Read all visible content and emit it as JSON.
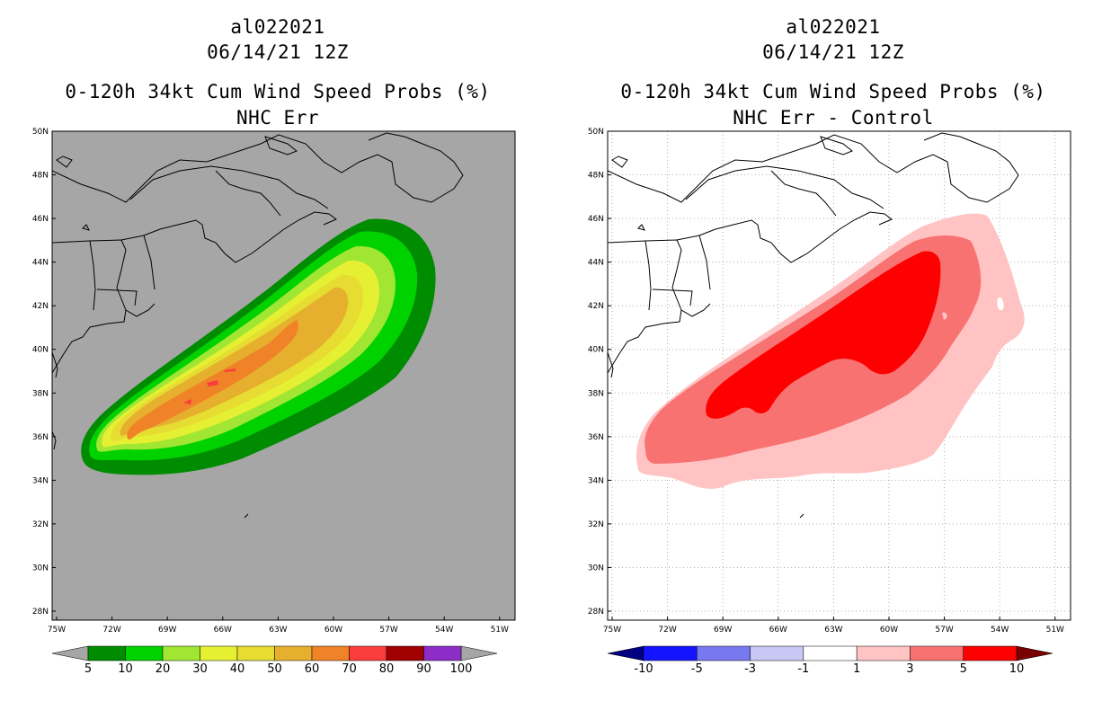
{
  "left": {
    "storm_id": "al022021",
    "datetime": "06/14/21 12Z",
    "product": "0-120h 34kt Cum Wind Speed Probs (%)",
    "subtitle": "NHC Err",
    "lat_labels": [
      "50N",
      "48N",
      "46N",
      "44N",
      "42N",
      "40N",
      "38N",
      "36N",
      "34N",
      "32N",
      "30N",
      "28N"
    ],
    "lon_labels": [
      "75W",
      "72W",
      "69W",
      "66W",
      "63W",
      "60W",
      "57W",
      "54W",
      "51W"
    ],
    "colorbar": {
      "labels": [
        "5",
        "10",
        "20",
        "30",
        "40",
        "50",
        "60",
        "70",
        "80",
        "90",
        "100"
      ],
      "colors": [
        "#008c00",
        "#00d200",
        "#a0e632",
        "#e6f032",
        "#e6dc32",
        "#e6af2d",
        "#f08228",
        "#fa3c3c",
        "#a00000",
        "#8c2dc8"
      ],
      "end_low": "#a6a6a6",
      "end_high": "#a6a6a6"
    },
    "chart_data": {
      "type": "heatmap",
      "title": "0-120h 34kt Cum Wind Speed Probs (%)",
      "subtitle": "NHC Err",
      "x_range_deg": [
        -75.5,
        -51
      ],
      "y_range_deg": [
        28,
        50
      ],
      "levels": [
        5,
        10,
        20,
        30,
        40,
        50,
        60,
        70,
        80,
        90,
        100
      ],
      "max_value_approx": 70,
      "pattern": "elongated probability swath from ~35N 73W northeastward to ~44N 57W"
    },
    "background": "#a6a6a6"
  },
  "right": {
    "storm_id": "al022021",
    "datetime": "06/14/21 12Z",
    "product": "0-120h 34kt Cum Wind Speed Probs (%)",
    "subtitle": "NHC Err - Control",
    "lat_labels": [
      "50N",
      "48N",
      "46N",
      "44N",
      "42N",
      "40N",
      "38N",
      "36N",
      "34N",
      "32N",
      "30N",
      "28N"
    ],
    "lon_labels": [
      "75W",
      "72W",
      "69W",
      "66W",
      "63W",
      "60W",
      "57W",
      "54W",
      "51W"
    ],
    "colorbar": {
      "labels": [
        "-10",
        "-5",
        "-3",
        "-1",
        "1",
        "3",
        "5",
        "10"
      ],
      "colors": [
        "#1414ff",
        "#7878f0",
        "#c8c8f5",
        "#ffffff",
        "#ffc3c3",
        "#f87272",
        "#ff0000"
      ],
      "end_low": "#000080",
      "end_high": "#780000"
    },
    "chart_data": {
      "type": "heatmap",
      "title": "0-120h 34kt Cum Wind Speed Probs (%)",
      "subtitle": "NHC Err - Control",
      "x_range_deg": [
        -75.5,
        -51
      ],
      "y_range_deg": [
        28,
        50
      ],
      "levels": [
        -10,
        -5,
        -3,
        -1,
        1,
        3,
        5,
        10
      ],
      "max_value_approx": 10,
      "pattern": "positive difference swath from ~35N 73W northeastward to ~44N 58W"
    },
    "background": "#ffffff"
  }
}
